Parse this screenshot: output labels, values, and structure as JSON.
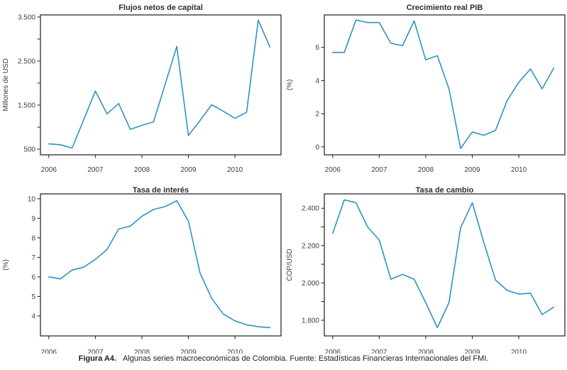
{
  "style": {
    "line_color": "#2E93C6",
    "axis_color": "#1c1c1c",
    "tick_text_color": "#3b4049",
    "title_color": "#2b2f33",
    "background": "#ffffff"
  },
  "caption": {
    "label": "Figura A4.",
    "text": "Algunas series macroeconómicas de Colombia. Fuente: Estadísticas Financieras Internacionales del FMI."
  },
  "chart_data": [
    {
      "type": "line",
      "title": "Flujos netos de capital",
      "ylabel": "Millones de USD",
      "xlabel": "",
      "grid": false,
      "legend": null,
      "x": [
        2006,
        2006.25,
        2006.5,
        2006.75,
        2007,
        2007.25,
        2007.5,
        2007.75,
        2008,
        2008.25,
        2008.5,
        2008.75,
        2009,
        2009.25,
        2009.5,
        2009.75,
        2010,
        2010.25,
        2010.5,
        2010.75
      ],
      "values": [
        620,
        600,
        525,
        1170,
        1820,
        1300,
        1535,
        950,
        1040,
        1120,
        1970,
        2830,
        810,
        1150,
        1510,
        1360,
        1200,
        1335,
        3430,
        2820
      ],
      "xlim": [
        2005.82,
        2010.99
      ],
      "ylim": [
        371,
        3548
      ],
      "xticks": [
        {
          "v": 2006,
          "label": "2006"
        },
        {
          "v": 2007,
          "label": "2007"
        },
        {
          "v": 2008,
          "label": "2008"
        },
        {
          "v": 2009,
          "label": "2009"
        },
        {
          "v": 2010,
          "label": "2010"
        }
      ],
      "yticks": [
        {
          "v": 500,
          "label": "500"
        },
        {
          "v": 1500,
          "label": "1.500"
        },
        {
          "v": 2500,
          "label": "2.500"
        },
        {
          "v": 3500,
          "label": "3.500"
        }
      ],
      "yticks_minor": [
        1000,
        2000,
        3000
      ]
    },
    {
      "type": "line",
      "title": "Crecimiento real PIB",
      "ylabel": "(%)",
      "xlabel": "",
      "grid": false,
      "legend": null,
      "x": [
        2006,
        2006.25,
        2006.5,
        2006.75,
        2007,
        2007.25,
        2007.5,
        2007.75,
        2008,
        2008.25,
        2008.5,
        2008.75,
        2009,
        2009.25,
        2009.5,
        2009.75,
        2010,
        2010.25,
        2010.5,
        2010.75
      ],
      "values": [
        5.7,
        5.7,
        7.65,
        7.5,
        7.5,
        6.25,
        6.1,
        7.6,
        5.25,
        5.5,
        3.5,
        -0.1,
        0.9,
        0.7,
        1.0,
        2.8,
        3.9,
        4.7,
        3.5,
        4.75
      ],
      "xlim": [
        2005.82,
        2010.99
      ],
      "ylim": [
        -0.48,
        7.96
      ],
      "xticks": [
        {
          "v": 2006,
          "label": "2006"
        },
        {
          "v": 2007,
          "label": "2007"
        },
        {
          "v": 2008,
          "label": "2008"
        },
        {
          "v": 2009,
          "label": "2009"
        },
        {
          "v": 2010,
          "label": "2010"
        }
      ],
      "yticks": [
        {
          "v": 0,
          "label": "0"
        },
        {
          "v": 2,
          "label": "2"
        },
        {
          "v": 4,
          "label": "4"
        },
        {
          "v": 6,
          "label": "6"
        }
      ],
      "yticks_minor": []
    },
    {
      "type": "line",
      "title": "Tasa de interés",
      "ylabel": "(%)",
      "xlabel": "",
      "grid": false,
      "legend": null,
      "x": [
        2006,
        2006.25,
        2006.5,
        2006.75,
        2007,
        2007.25,
        2007.5,
        2007.75,
        2008,
        2008.25,
        2008.5,
        2008.75,
        2009,
        2009.25,
        2009.5,
        2009.75,
        2010,
        2010.25,
        2010.5,
        2010.75
      ],
      "values": [
        6.0,
        5.9,
        6.35,
        6.5,
        6.9,
        7.4,
        8.45,
        8.6,
        9.1,
        9.45,
        9.6,
        9.9,
        8.85,
        6.2,
        4.9,
        4.1,
        3.75,
        3.55,
        3.45,
        3.4
      ],
      "xlim": [
        2005.82,
        2010.99
      ],
      "ylim": [
        2.98,
        10.25
      ],
      "xticks": [
        {
          "v": 2006,
          "label": "2006"
        },
        {
          "v": 2007,
          "label": "2007"
        },
        {
          "v": 2008,
          "label": "2008"
        },
        {
          "v": 2009,
          "label": "2009"
        },
        {
          "v": 2010,
          "label": "2010"
        }
      ],
      "yticks": [
        {
          "v": 4,
          "label": "4"
        },
        {
          "v": 5,
          "label": "5"
        },
        {
          "v": 6,
          "label": "6"
        },
        {
          "v": 7,
          "label": "7"
        },
        {
          "v": 8,
          "label": "8"
        },
        {
          "v": 9,
          "label": "9"
        },
        {
          "v": 10,
          "label": "10"
        }
      ],
      "yticks_minor": []
    },
    {
      "type": "line",
      "title": "Tasa de cambio",
      "ylabel": "COP/USD",
      "xlabel": "",
      "grid": false,
      "legend": null,
      "x": [
        2006,
        2006.25,
        2006.5,
        2006.75,
        2007,
        2007.25,
        2007.5,
        2007.75,
        2008,
        2008.25,
        2008.5,
        2008.75,
        2009,
        2009.25,
        2009.5,
        2009.75,
        2010,
        2010.25,
        2010.5,
        2010.75
      ],
      "values": [
        2265,
        2445,
        2430,
        2300,
        2230,
        2020,
        2045,
        2020,
        1895,
        1760,
        1895,
        2295,
        2430,
        2215,
        2015,
        1960,
        1940,
        1945,
        1830,
        1870
      ],
      "xlim": [
        2005.82,
        2010.99
      ],
      "ylim": [
        1716,
        2477
      ],
      "xticks": [
        {
          "v": 2006,
          "label": "2006"
        },
        {
          "v": 2007,
          "label": "2007"
        },
        {
          "v": 2008,
          "label": "2008"
        },
        {
          "v": 2009,
          "label": "2009"
        },
        {
          "v": 2010,
          "label": "2010"
        }
      ],
      "yticks": [
        {
          "v": 1800,
          "label": "1.800"
        },
        {
          "v": 2000,
          "label": "2.000"
        },
        {
          "v": 2200,
          "label": "2.200"
        },
        {
          "v": 2400,
          "label": "2.400"
        }
      ],
      "yticks_minor": [
        1900,
        2100,
        2300
      ]
    }
  ]
}
